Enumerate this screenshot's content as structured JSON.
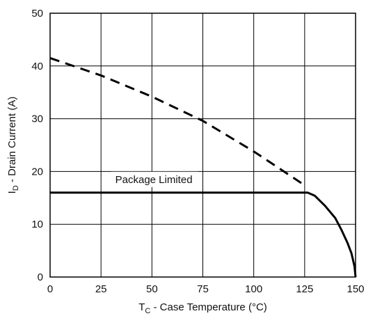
{
  "chart_data": {
    "type": "line",
    "xlabel": {
      "main": "T",
      "sub": "C",
      "rest": " - Case Temperature (°C)"
    },
    "ylabel": {
      "main": "I",
      "sub": "D",
      "rest": " - Drain Current (A)"
    },
    "xlim": [
      0,
      150
    ],
    "ylim": [
      0,
      50
    ],
    "xticks": [
      0,
      25,
      50,
      75,
      100,
      125,
      150
    ],
    "yticks": [
      0,
      10,
      20,
      30,
      40,
      50
    ],
    "grid": true,
    "series": [
      {
        "style": "dashed",
        "x": [
          0,
          25,
          50,
          75,
          100,
          125
        ],
        "y": [
          41.5,
          38.2,
          34.2,
          29.6,
          23.8,
          17.4
        ]
      },
      {
        "style": "solid",
        "x": [
          0,
          126.5,
          130,
          135,
          140,
          143,
          146,
          148,
          149.5,
          150
        ],
        "y": [
          16,
          16,
          15.4,
          13.5,
          11.2,
          9.0,
          6.5,
          4.5,
          2.0,
          0
        ]
      }
    ],
    "annotations": [
      {
        "text": "Package Limited",
        "x": 32,
        "y": 18.5
      }
    ]
  }
}
